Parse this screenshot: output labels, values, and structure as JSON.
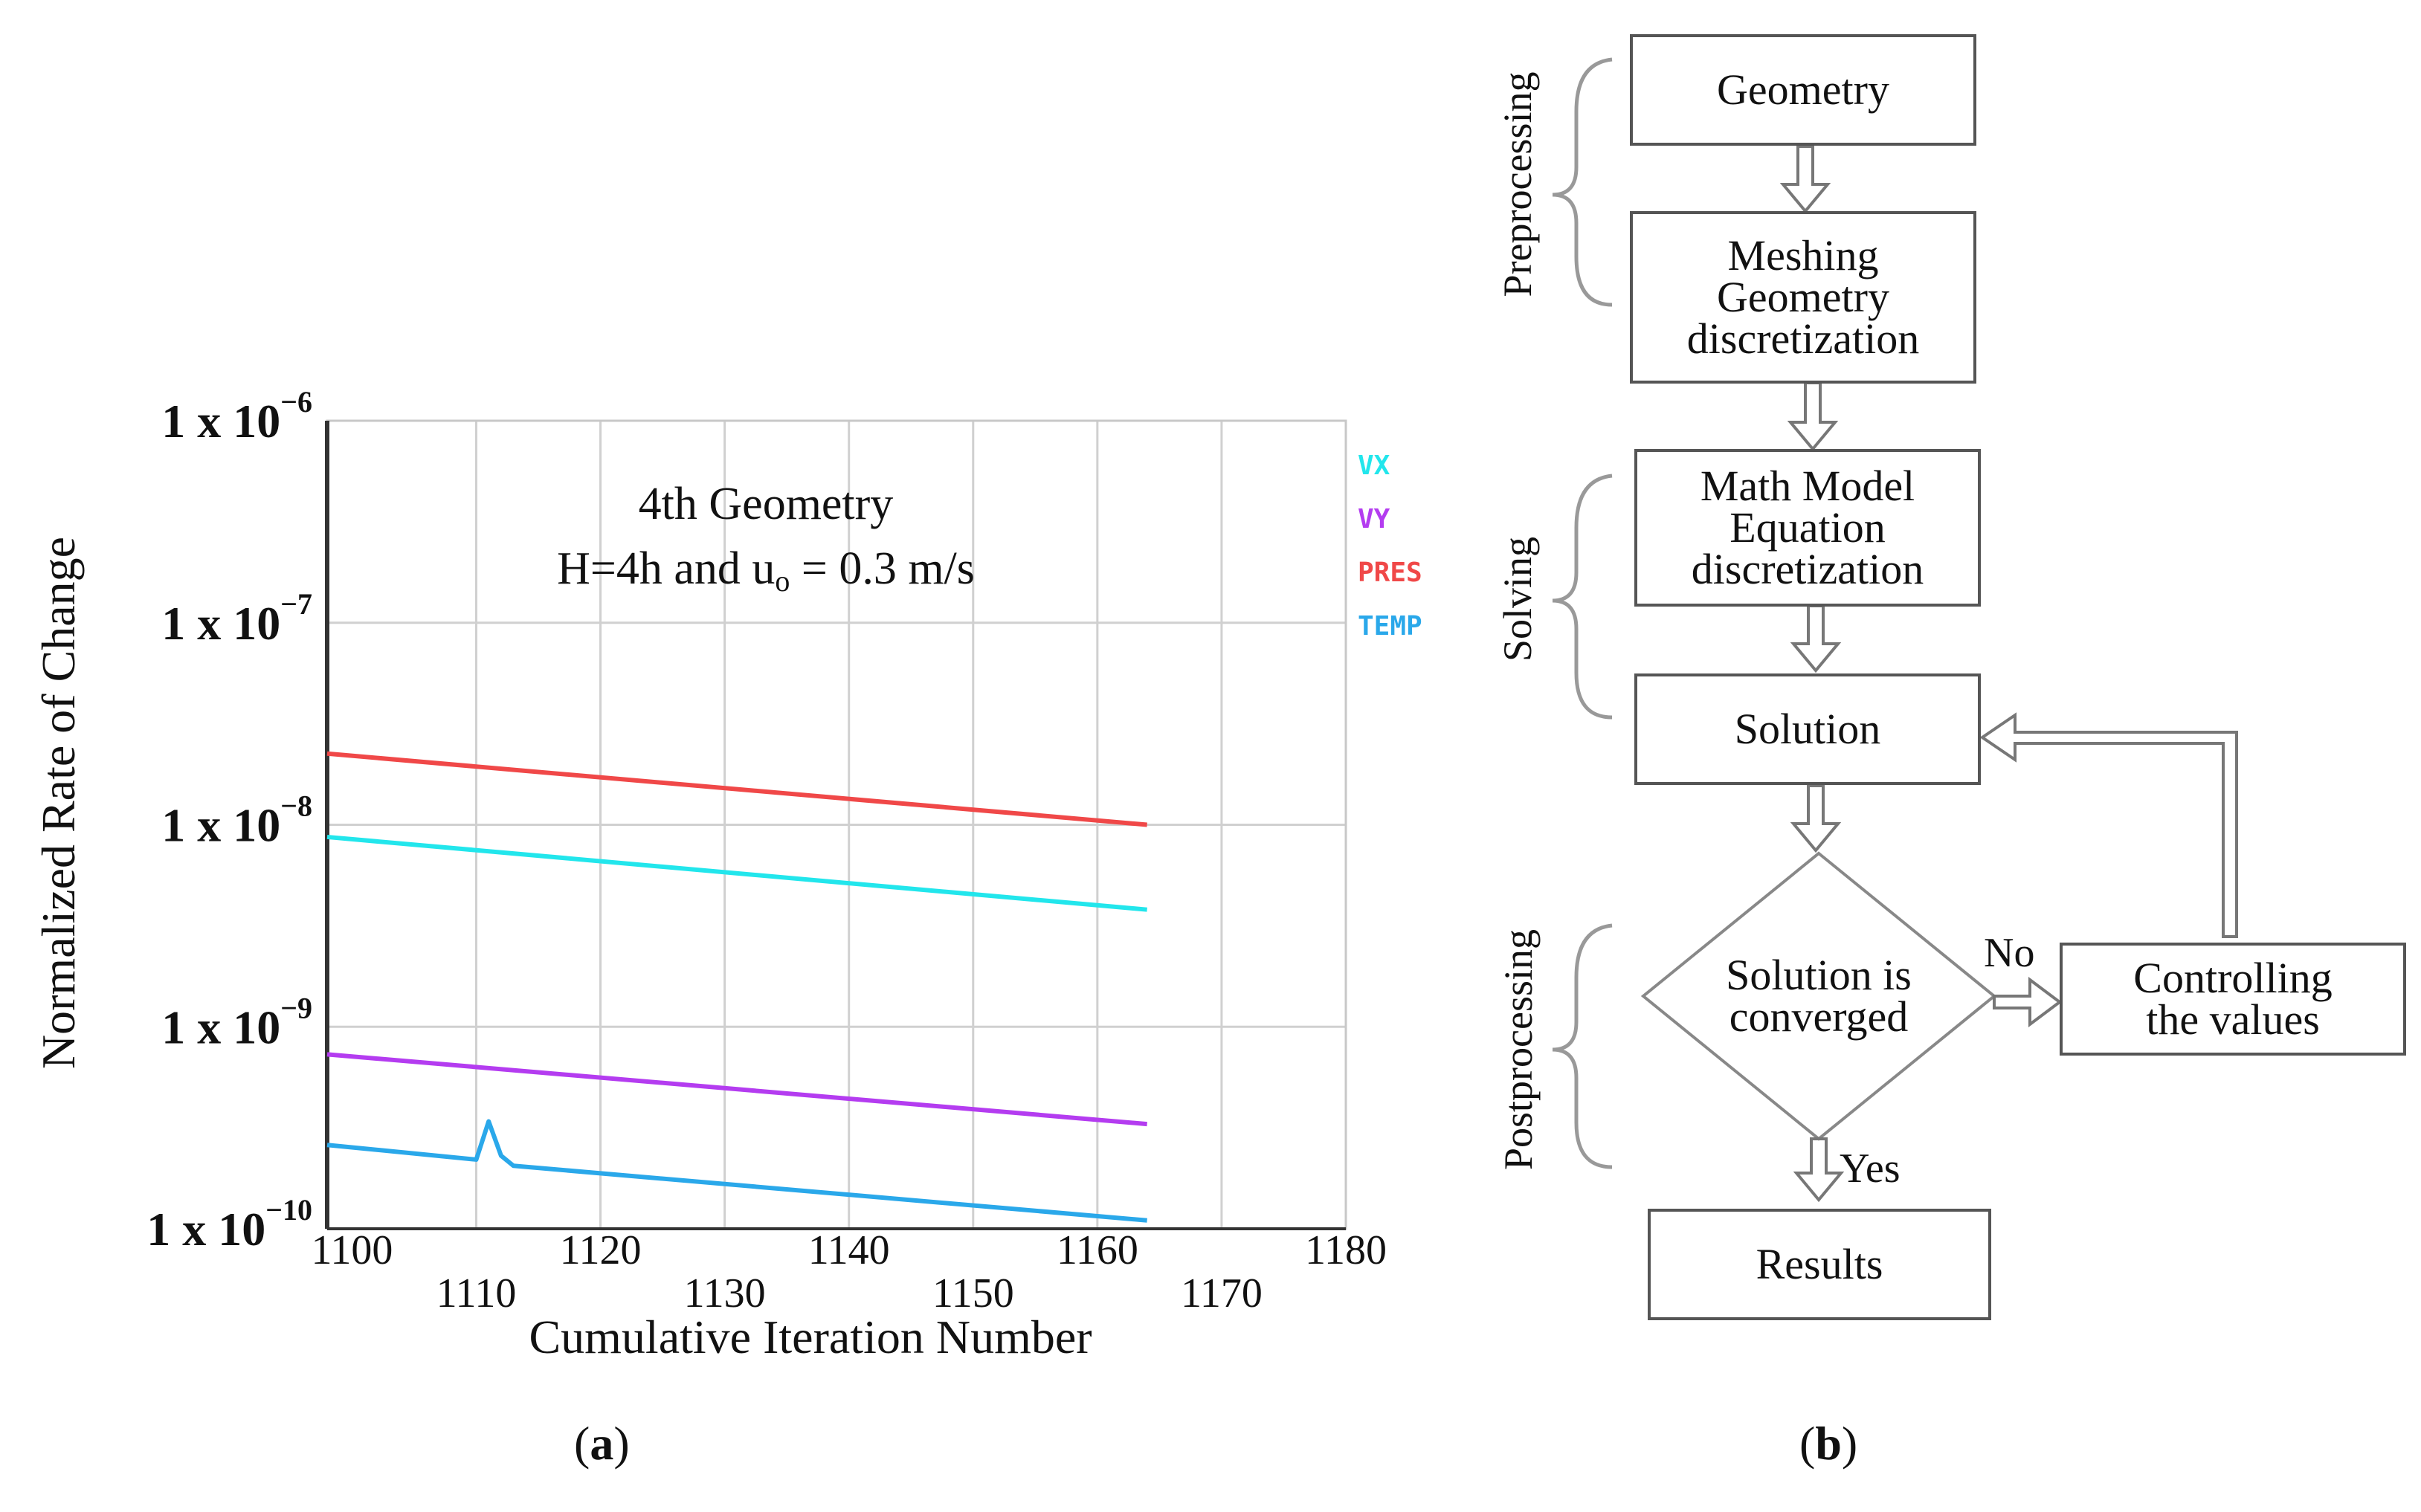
{
  "chart_data": {
    "type": "line",
    "title_line1": "4th Geometry",
    "title_line2_prefix": "H=4h and u",
    "title_line2_sub": "o",
    "title_line2_suffix": " = 0.3 m/s",
    "xlabel": "Cumulative Iteration Number",
    "ylabel": "Normalized Rate of Change",
    "xlim": [
      1098,
      1180
    ],
    "y_scale": "log",
    "ylim": [
      1e-10,
      1e-06
    ],
    "x_ticks": [
      1100,
      1110,
      1120,
      1130,
      1140,
      1150,
      1160,
      1170,
      1180
    ],
    "x_grid": [
      1110,
      1120,
      1130,
      1140,
      1150,
      1160,
      1170
    ],
    "y_ticks": [
      {
        "value": 1e-06,
        "base": "1 x 10",
        "exp": "−6"
      },
      {
        "value": 1e-07,
        "base": "1 x 10",
        "exp": "−7"
      },
      {
        "value": 1e-08,
        "base": "1 x 10",
        "exp": "−8"
      },
      {
        "value": 1e-09,
        "base": "1 x 10",
        "exp": "−9"
      },
      {
        "value": 1e-10,
        "base": "1 x 10",
        "exp": "−10"
      }
    ],
    "series": [
      {
        "name": "VX",
        "color": "#22e6ec",
        "x": [
          1098,
          1164
        ],
        "values": [
          8.7e-09,
          3.8e-09
        ]
      },
      {
        "name": "VY",
        "color": "#b43cf0",
        "x": [
          1098,
          1164
        ],
        "values": [
          7.3e-10,
          3.3e-10
        ]
      },
      {
        "name": "PRES",
        "color": "#f04848",
        "x": [
          1098,
          1164
        ],
        "values": [
          2.25e-08,
          1e-08
        ]
      },
      {
        "name": "TEMP",
        "color": "#2aa8ea",
        "x": [
          1098,
          1110,
          1111,
          1112,
          1113,
          1164
        ],
        "values": [
          2.6e-10,
          2.2e-10,
          3.4e-10,
          2.3e-10,
          2.05e-10,
          1.1e-10
        ]
      }
    ]
  },
  "panels": {
    "a_label": "a",
    "b_label": "b"
  },
  "flowchart": {
    "stages": {
      "preprocessing": "Preprocessing",
      "solving": "Solving",
      "postprocessing": "Postprocessing"
    },
    "boxes": {
      "geometry": "Geometry",
      "meshing": "Meshing\nGeometry\ndiscretization",
      "math_model": "Math Model\nEquation\ndiscretization",
      "solution": "Solution",
      "decision": "Solution is\nconverged",
      "controlling": "Controlling\nthe values",
      "results": "Results"
    },
    "branches": {
      "no": "No",
      "yes": "Yes"
    }
  }
}
